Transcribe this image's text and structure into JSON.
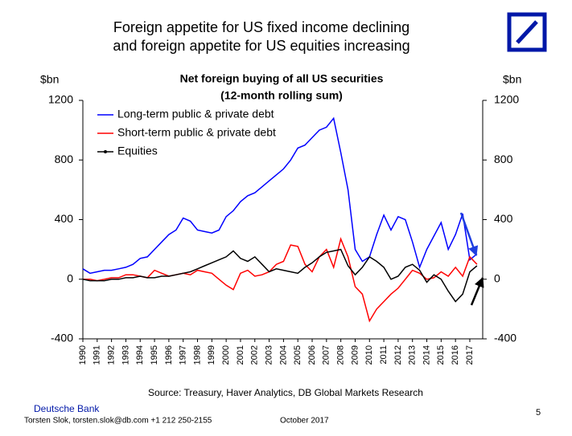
{
  "header": {
    "title_lines": [
      "Foreign appetite for US fixed income declining",
      "and foreign appetite for US equities increasing"
    ]
  },
  "chart_data": {
    "type": "line",
    "title": "Net foreign buying of all US securities",
    "subtitle": "(12-month rolling sum)",
    "ylabel": "$bn",
    "y2label": "$bn",
    "x": [
      1990,
      1990.5,
      1991,
      1991.5,
      1992,
      1992.5,
      1993,
      1993.5,
      1994,
      1994.5,
      1995,
      1995.5,
      1996,
      1996.5,
      1997,
      1997.5,
      1998,
      1998.5,
      1999,
      1999.5,
      2000,
      2000.5,
      2001,
      2001.5,
      2002,
      2002.5,
      2003,
      2003.5,
      2004,
      2004.5,
      2005,
      2005.5,
      2006,
      2006.5,
      2007,
      2007.5,
      2008,
      2008.5,
      2009,
      2009.5,
      2010,
      2010.5,
      2011,
      2011.5,
      2012,
      2012.5,
      2013,
      2013.5,
      2014,
      2014.5,
      2015,
      2015.5,
      2016,
      2016.5,
      2017,
      2017.5
    ],
    "series": [
      {
        "name": "Long-term public & private debt",
        "color": "#0000ff",
        "values": [
          70,
          40,
          50,
          60,
          60,
          70,
          80,
          100,
          140,
          150,
          200,
          250,
          300,
          330,
          410,
          390,
          330,
          320,
          310,
          330,
          420,
          460,
          520,
          560,
          580,
          620,
          660,
          700,
          740,
          800,
          880,
          900,
          950,
          1000,
          1020,
          1080,
          850,
          600,
          200,
          120,
          150,
          300,
          430,
          330,
          420,
          400,
          250,
          80,
          200,
          290,
          380,
          200,
          300,
          440,
          130,
          170
        ]
      },
      {
        "name": "Short-term public & private debt",
        "color": "#ff0000",
        "values": [
          0,
          0,
          -10,
          0,
          10,
          10,
          30,
          30,
          20,
          10,
          60,
          40,
          20,
          30,
          40,
          30,
          60,
          50,
          40,
          0,
          -40,
          -70,
          40,
          60,
          20,
          30,
          50,
          100,
          120,
          230,
          220,
          100,
          50,
          150,
          200,
          80,
          270,
          150,
          -50,
          -100,
          -280,
          -200,
          -150,
          -100,
          -60,
          0,
          60,
          40,
          0,
          10,
          50,
          20,
          80,
          20,
          150,
          100
        ]
      },
      {
        "name": "Equities",
        "color": "#000000",
        "values": [
          0,
          -10,
          -10,
          -10,
          0,
          0,
          10,
          10,
          20,
          10,
          10,
          20,
          20,
          30,
          40,
          50,
          70,
          90,
          110,
          130,
          150,
          190,
          140,
          120,
          150,
          100,
          50,
          70,
          60,
          50,
          40,
          80,
          110,
          150,
          180,
          190,
          200,
          90,
          30,
          80,
          150,
          120,
          80,
          0,
          20,
          80,
          100,
          60,
          -20,
          30,
          0,
          -80,
          -150,
          -100,
          50,
          90
        ]
      }
    ],
    "xlim": [
      1990,
      2017.9
    ],
    "xticks": [
      1990,
      1991,
      1992,
      1993,
      1994,
      1995,
      1996,
      1997,
      1998,
      1999,
      2000,
      2001,
      2002,
      2003,
      2004,
      2005,
      2006,
      2007,
      2008,
      2009,
      2010,
      2011,
      2012,
      2013,
      2014,
      2015,
      2016,
      2017
    ],
    "ylim": [
      -400,
      1200
    ],
    "yticks": [
      -400,
      0,
      400,
      800,
      1200
    ],
    "y2lim": [
      -400,
      1200
    ],
    "y2ticks": [
      -400,
      0,
      400,
      800,
      1200
    ],
    "legend": "upper left",
    "source": "Source:  Treasury, Haver Analytics, DB Global Markets Research"
  },
  "footer": {
    "company": "Deutsche Bank",
    "contact": "Torsten Slok, torsten.slok@db.com +1 212 250-2155",
    "date": "October  2017",
    "page": "5"
  }
}
